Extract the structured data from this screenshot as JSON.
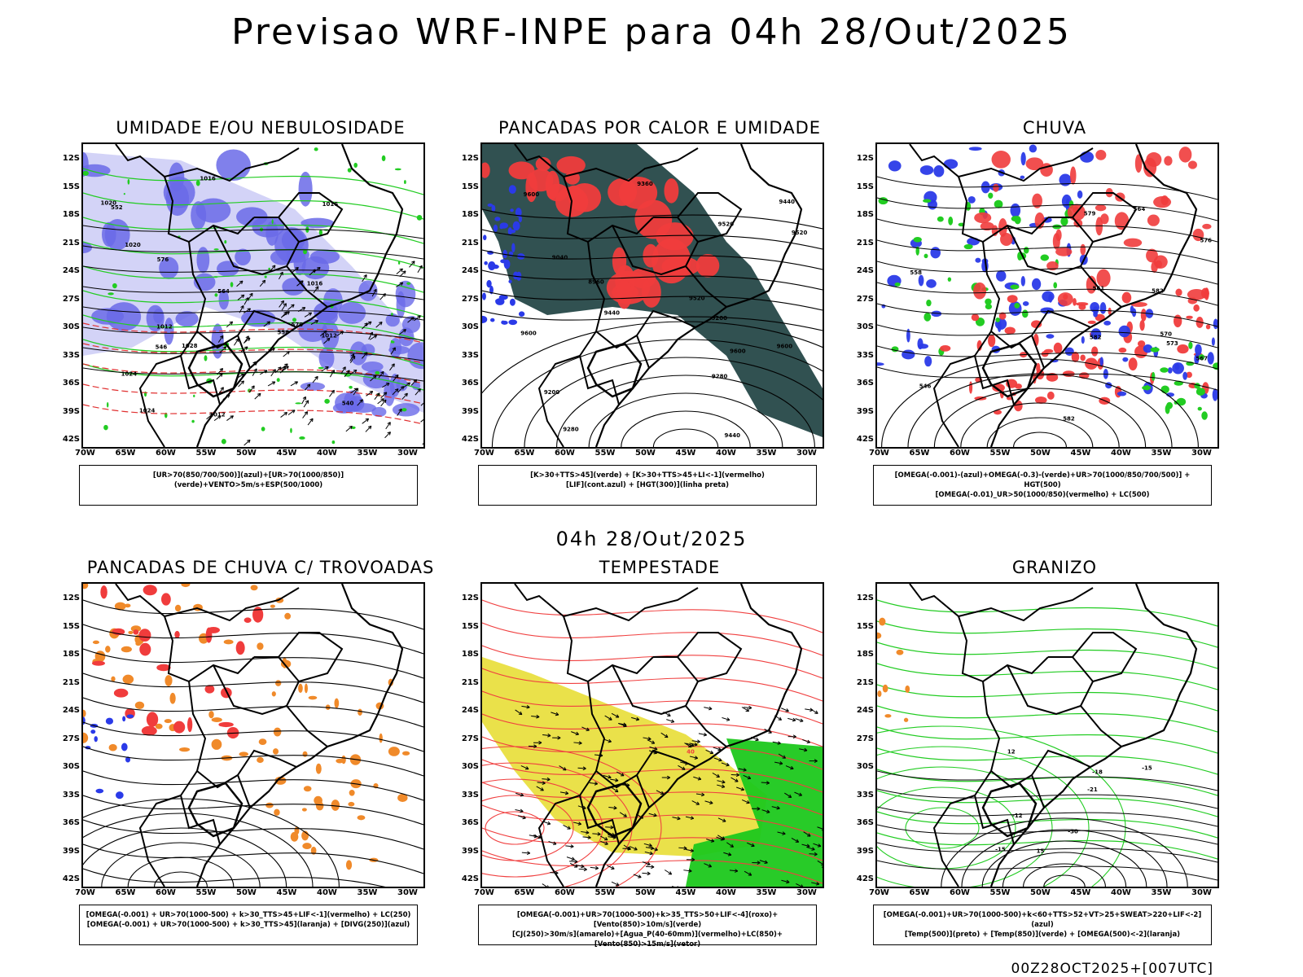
{
  "header": {
    "title": "Previsao WRF-INPE  para 04h 28/Out/2025"
  },
  "mid_label": "04h 28/Out/2025",
  "footer": "00Z28OCT2025+[007UTC]",
  "axes": {
    "lat_ticks": [
      "12S",
      "15S",
      "18S",
      "21S",
      "24S",
      "27S",
      "30S",
      "33S",
      "36S",
      "39S",
      "42S"
    ],
    "lon_ticks": [
      "70W",
      "65W",
      "60W",
      "55W",
      "50W",
      "45W",
      "40W",
      "35W",
      "30W"
    ]
  },
  "panels": [
    {
      "title": "UMIDADE E/OU NEBULOSIDADE",
      "legend": [
        "[UR>70(850/700/500)](azul)+[UR>70(1000/850)](verde)+VENTO>5m/s+ESP(500/1000)"
      ],
      "contour_labels": [
        "1012",
        "1012",
        "1012",
        "1016",
        "1016",
        "1016",
        "1020",
        "1020",
        "1024",
        "1024",
        "1028",
        "570",
        "576",
        "564",
        "558",
        "552",
        "546",
        "540"
      ],
      "colors": {
        "humid_upper": "#6a6ae8",
        "humid_light": "#c8c8f5",
        "humid_low": "#22cc22",
        "thickness": "#e03030"
      }
    },
    {
      "title": "PANCADAS POR CALOR E UMIDADE",
      "legend": [
        "[K>30+TTS>45](verde) + [K>30+TTS>45+LI<-1](vermelho)",
        "[LIF](cont.azul) + [HGT(300)](linha preta)"
      ],
      "contour_labels": [
        "9600",
        "9600",
        "9600",
        "9520",
        "9520",
        "9520",
        "9440",
        "9440",
        "9440",
        "9360",
        "9280",
        "9280",
        "9200",
        "9200",
        "9040",
        "8960",
        "9600"
      ],
      "colors": {
        "instab": "#264848",
        "strong": "#f03c3c",
        "lif": "#2a3ae8"
      }
    },
    {
      "title": "CHUVA",
      "legend": [
        "[OMEGA(-0.001)-(azul)+OMEGA(-0.3)-(verde)+UR>70(1000/850/700/500)] + HGT(500)",
        "[OMEGA(-0.01)_UR>50(1000/850)(vermelho) + LC(500)"
      ],
      "contour_labels": [
        "582",
        "582",
        "582",
        "579",
        "576",
        "573",
        "570",
        "567",
        "564",
        "561",
        "558",
        "546"
      ],
      "colors": {
        "omega1": "#2a3ae8",
        "omega2": "#22cc22",
        "rain": "#f03c3c"
      }
    },
    {
      "title": "PANCADAS DE CHUVA C/ TROVOADAS",
      "legend": [
        "[OMEGA(-0.001) + UR>70(1000-500) + k>30_TTS>45+LIF<-1](vermelho) + LC(250)",
        "[OMEGA(-0.001) + UR>70(1000-500) + k>30_TTS>45](laranja) + [DIVG(250)](azul)"
      ],
      "contour_labels": [],
      "colors": {
        "storm": "#f03c3c",
        "convective": "#f08a2a",
        "divg": "#2a3ae8"
      }
    },
    {
      "title": "TEMPESTADE",
      "legend": [
        "[OMEGA(-0.001)+UR>70(1000-500)+k>35_TTS>50+LIF<-4](roxo)+[Vento(850)>10m/s](verde)",
        "[CJ(250)>30m/s](amarelo)+[Agua_P(40-60mm)](vermelho)+LC(850)+[Vento(850)>15m/s](vetor)"
      ],
      "contour_labels": [
        "40"
      ],
      "colors": {
        "jet": "#e6dc2a",
        "wind": "#1cc81c",
        "water": "#f04040"
      }
    },
    {
      "title": "GRANIZO",
      "legend": [
        "[OMEGA(-0.001)+UR>70(1000-500)+k<60+TTS>52+VT>25+SWEAT>220+LIF<-2](azul)",
        "[Temp(500)](preto) + [Temp(850)](verde) + [OMEGA(500)<-2](laranja)"
      ],
      "contour_labels": [
        "-12",
        "-15",
        "-15",
        "-18",
        "-21",
        "-30",
        "12",
        "15"
      ],
      "colors": {
        "t850": "#22cc22",
        "omega": "#f08a2a"
      }
    }
  ]
}
